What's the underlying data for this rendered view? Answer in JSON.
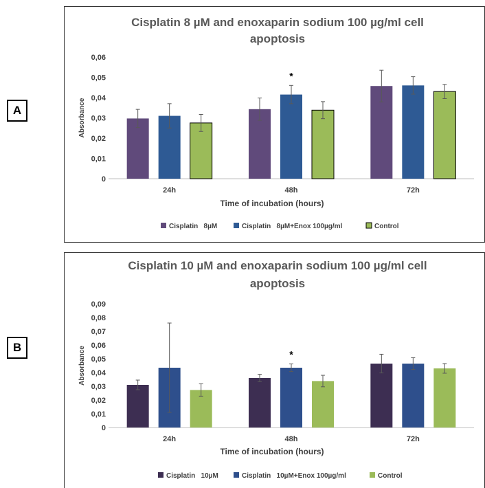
{
  "panel_labels": [
    "A",
    "B"
  ],
  "chart_data": [
    {
      "type": "bar",
      "title": "Cisplatin 8 µM and enoxaparin sodium 100 µg/ml cell apoptosis",
      "title_lines": [
        "Cisplatin 8 µM and enoxaparin sodium 100 µg/ml cell",
        "apoptosis"
      ],
      "xlabel": "Time of incubation (hours)",
      "ylabel": "Absorbance",
      "categories": [
        "24h",
        "48h",
        "72h"
      ],
      "ylim": [
        0,
        0.06
      ],
      "yticks": [
        "0",
        "0,01",
        "0,02",
        "0,03",
        "0,04",
        "0,05",
        "0,06"
      ],
      "grid": false,
      "legend": "bottom",
      "annotations": [
        {
          "category": "48h",
          "series": 1,
          "text": "*"
        }
      ],
      "series": [
        {
          "name": "Cisplatin   8µM",
          "color": "#604A7B",
          "outline": false,
          "values": [
            0.0297,
            0.0343,
            0.0457
          ],
          "errors": [
            0.0045,
            0.0055,
            0.0078
          ]
        },
        {
          "name": "Cisplatin   8µM+Enox 100µg/ml",
          "color": "#2E5A94",
          "outline": false,
          "values": [
            0.031,
            0.0415,
            0.046
          ],
          "errors": [
            0.006,
            0.0045,
            0.0043
          ]
        },
        {
          "name": "Control",
          "color": "#9BBB59",
          "outline": true,
          "values": [
            0.0275,
            0.0338,
            0.043
          ],
          "errors": [
            0.0042,
            0.0042,
            0.0035
          ]
        }
      ]
    },
    {
      "type": "bar",
      "title": "Cisplatin 10 µM and enoxaparin sodium 100 µg/ml cell apoptosis",
      "title_lines": [
        "Cisplatin 10 µM and enoxaparin sodium 100 µg/ml cell",
        "apoptosis"
      ],
      "xlabel": "Time of incubation (hours)",
      "ylabel": "Absorbance",
      "categories": [
        "24h",
        "48h",
        "72h"
      ],
      "ylim": [
        0,
        0.09
      ],
      "yticks": [
        "0",
        "0,01",
        "0,02",
        "0,03",
        "0,04",
        "0,05",
        "0,06",
        "0,07",
        "0,08",
        "0,09"
      ],
      "grid": false,
      "legend": "bottom",
      "annotations": [
        {
          "category": "48h",
          "series": 1,
          "text": "*"
        }
      ],
      "series": [
        {
          "name": "Cisplatin   10µM",
          "color": "#3D2E52",
          "outline": false,
          "values": [
            0.031,
            0.036,
            0.0465
          ],
          "errors": [
            0.0035,
            0.0027,
            0.0068
          ]
        },
        {
          "name": "Cisplatin   10µM+Enox 100µg/ml",
          "color": "#2E4F8C",
          "outline": false,
          "values": [
            0.0435,
            0.0435,
            0.0465
          ],
          "errors": [
            0.0325,
            0.0028,
            0.0043
          ]
        },
        {
          "name": "Control",
          "color": "#9BBB59",
          "outline": false,
          "values": [
            0.0273,
            0.0338,
            0.043
          ],
          "errors": [
            0.0045,
            0.0042,
            0.0035
          ]
        }
      ]
    }
  ]
}
